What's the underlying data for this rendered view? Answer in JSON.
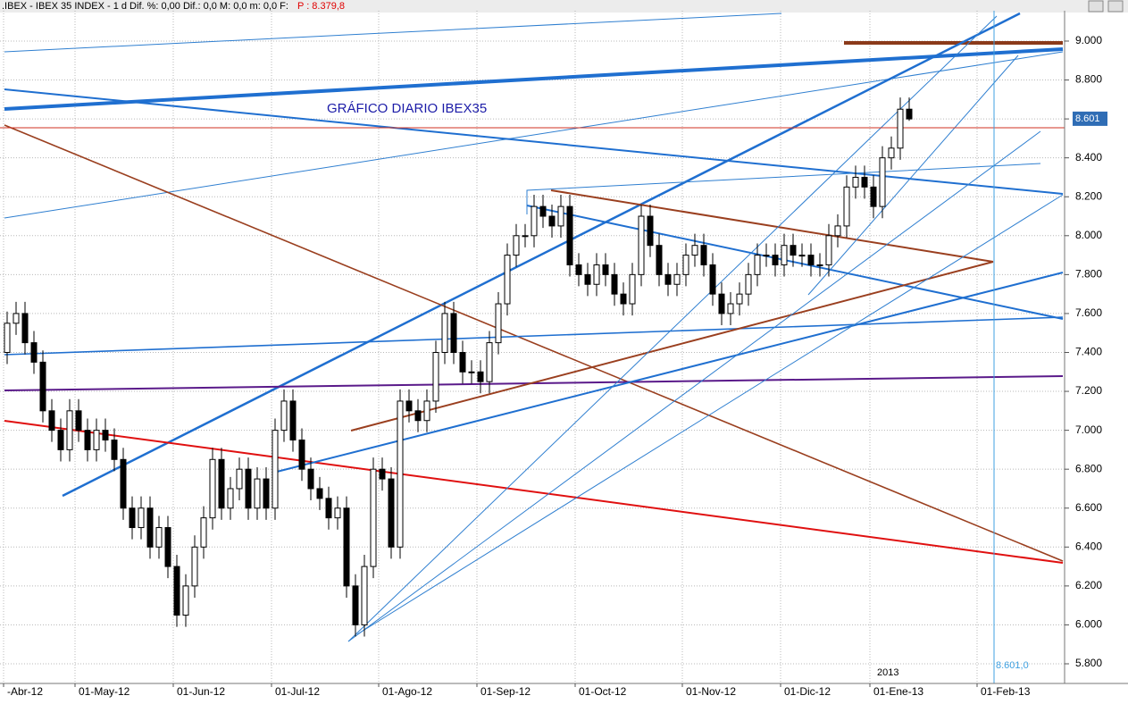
{
  "chart_data": {
    "type": "candlestick",
    "header": ".IBEX - IBEX 35 INDEX - 1 d Dif. %: 0,00 Dif.: 0,0 M: 0,0 m: 0,0 F:",
    "header_price": "P : 8.379,8",
    "title": "GRÁFICO DIARIO IBEX35",
    "year_label": "2013",
    "cursor_label": "8.601,0",
    "last_price": {
      "value": 8601,
      "label": "8.601"
    },
    "categories": [
      "-Abr-12",
      null,
      null,
      null,
      null,
      null,
      null,
      null,
      "01-May-12",
      null,
      null,
      null,
      null,
      null,
      null,
      null,
      null,
      null,
      null,
      "01-Jun-12",
      null,
      null,
      null,
      null,
      null,
      null,
      null,
      null,
      null,
      null,
      "01-Jul-12",
      null,
      null,
      null,
      null,
      null,
      null,
      null,
      null,
      null,
      null,
      null,
      "01-Ago-12",
      null,
      null,
      null,
      null,
      null,
      null,
      null,
      null,
      null,
      null,
      "01-Sep-12",
      null,
      null,
      null,
      null,
      null,
      null,
      null,
      null,
      null,
      null,
      "01-Oct-12",
      null,
      null,
      null,
      null,
      null,
      null,
      null,
      null,
      null,
      null,
      null,
      "01-Nov-12",
      null,
      null,
      null,
      null,
      null,
      null,
      null,
      null,
      null,
      null,
      "01-Dic-12",
      null,
      null,
      null,
      null,
      null,
      null,
      null,
      null,
      null,
      "01-Ene-13",
      null,
      null,
      null,
      null,
      null,
      null,
      null,
      null,
      null,
      null,
      null,
      "01-Feb-13",
      null,
      null,
      null,
      null,
      null,
      null,
      null,
      null,
      null
    ],
    "open": [
      7400,
      7550,
      7600,
      7450,
      7350,
      7100,
      7000,
      6900,
      7100,
      7000,
      6900,
      7000,
      6950,
      6850,
      6600,
      6500,
      6600,
      6400,
      6500,
      6300,
      6050,
      6200,
      6400,
      6550,
      6850,
      6600,
      6700,
      6800,
      6600,
      6750,
      6600,
      7000,
      7150,
      6950,
      6800,
      6700,
      6650,
      6550,
      6600,
      6200,
      6000,
      6300,
      6800,
      6750,
      6400,
      7150,
      7100,
      7050,
      7150,
      7400,
      7600,
      7400,
      7300,
      7300,
      7250,
      7450,
      7650,
      7900,
      8000,
      8000,
      8150,
      8100,
      8050,
      8150,
      7850,
      7800,
      7750,
      7850,
      7800,
      7700,
      7650,
      7800,
      8100,
      7950,
      7800,
      7750,
      7800,
      7900,
      7950,
      7850,
      7700,
      7600,
      7650,
      7700,
      7800,
      7900,
      7900,
      7850,
      7950,
      7900,
      7900,
      7850,
      7850,
      8000,
      8050,
      8250,
      8300,
      8250,
      8150,
      8400,
      8450,
      8650,
      null,
      null,
      null,
      null,
      null,
      null,
      null,
      null,
      null,
      null,
      null,
      null,
      null,
      null,
      null,
      null,
      null
    ],
    "high": [
      7610,
      7660,
      7660,
      7510,
      7410,
      7160,
      7060,
      7160,
      7160,
      7060,
      7060,
      7060,
      7010,
      6910,
      6660,
      6660,
      6660,
      6560,
      6560,
      6360,
      6260,
      6460,
      6610,
      6910,
      6910,
      6760,
      6860,
      6860,
      6810,
      6810,
      7060,
      7210,
      7210,
      7010,
      6860,
      6760,
      6710,
      6660,
      6660,
      6260,
      6360,
      6860,
      6860,
      6810,
      7210,
      7210,
      7160,
      7210,
      7460,
      7660,
      7660,
      7460,
      7360,
      7360,
      7510,
      7710,
      7960,
      8060,
      8060,
      8210,
      8210,
      8160,
      8210,
      8210,
      7910,
      7860,
      7910,
      7910,
      7860,
      7760,
      7860,
      8160,
      8160,
      8010,
      7860,
      7860,
      7960,
      8010,
      8010,
      7910,
      7760,
      7710,
      7760,
      7860,
      7960,
      7960,
      7960,
      8010,
      8010,
      7960,
      7960,
      7910,
      8060,
      8110,
      8310,
      8360,
      8360,
      8310,
      8460,
      8510,
      8710,
      8710,
      null,
      null,
      null,
      null,
      null,
      null,
      null,
      null,
      null,
      null,
      null,
      null,
      null,
      null,
      null,
      null,
      null
    ],
    "low": [
      7340,
      7490,
      7390,
      7290,
      7040,
      6940,
      6840,
      6840,
      6940,
      6840,
      6840,
      6890,
      6790,
      6540,
      6440,
      6440,
      6340,
      6340,
      6240,
      5990,
      5990,
      6140,
      6340,
      6490,
      6540,
      6540,
      6640,
      6540,
      6540,
      6540,
      6540,
      6940,
      6890,
      6740,
      6640,
      6590,
      6490,
      6490,
      6140,
      5940,
      5940,
      6240,
      6690,
      6340,
      6340,
      7040,
      6990,
      6990,
      7090,
      7340,
      7340,
      7240,
      7240,
      7190,
      7190,
      7390,
      7590,
      7840,
      7940,
      7940,
      8040,
      7990,
      7990,
      7790,
      7740,
      7690,
      7690,
      7740,
      7640,
      7590,
      7590,
      7740,
      7890,
      7740,
      7690,
      7690,
      7740,
      7840,
      7790,
      7640,
      7540,
      7540,
      7590,
      7640,
      7740,
      7840,
      7790,
      7790,
      7840,
      7840,
      7790,
      7790,
      7790,
      7940,
      7990,
      8190,
      8190,
      8090,
      8090,
      8340,
      8390,
      8590,
      null,
      null,
      null,
      null,
      null,
      null,
      null,
      null,
      null,
      null,
      null,
      null,
      null,
      null,
      null,
      null,
      null
    ],
    "close": [
      7550,
      7600,
      7450,
      7350,
      7100,
      7000,
      6900,
      7100,
      7000,
      6900,
      7000,
      6950,
      6850,
      6600,
      6500,
      6600,
      6400,
      6500,
      6300,
      6050,
      6200,
      6400,
      6550,
      6850,
      6600,
      6700,
      6800,
      6600,
      6750,
      6600,
      7000,
      7150,
      6950,
      6800,
      6700,
      6650,
      6550,
      6600,
      6200,
      6000,
      6300,
      6800,
      6750,
      6400,
      7150,
      7100,
      7050,
      7150,
      7400,
      7600,
      7400,
      7300,
      7300,
      7250,
      7450,
      7650,
      7900,
      8000,
      8000,
      8150,
      8100,
      8050,
      8150,
      7850,
      7800,
      7750,
      7850,
      7800,
      7700,
      7650,
      7800,
      8100,
      7950,
      7800,
      7750,
      7800,
      7900,
      7950,
      7850,
      7700,
      7600,
      7650,
      7700,
      7800,
      7900,
      7900,
      7850,
      7950,
      7900,
      7900,
      7850,
      7850,
      8000,
      8050,
      8250,
      8300,
      8250,
      8150,
      8400,
      8450,
      8650,
      8600,
      null,
      null,
      null,
      null,
      null,
      null,
      null,
      null,
      null,
      null,
      null,
      null,
      null,
      null,
      null,
      null,
      null
    ],
    "ylim": [
      5699,
      9156
    ],
    "yticks": [
      {
        "value": 5800,
        "label": "5.800"
      },
      {
        "value": 6000,
        "label": "6.000"
      },
      {
        "value": 6200,
        "label": "6.200"
      },
      {
        "value": 6400,
        "label": "6.400"
      },
      {
        "value": 6600,
        "label": "6.600"
      },
      {
        "value": 6800,
        "label": "6.800"
      },
      {
        "value": 7000,
        "label": "7.000"
      },
      {
        "value": 7200,
        "label": "7.200"
      },
      {
        "value": 7400,
        "label": "7.400"
      },
      {
        "value": 7600,
        "label": "7.600"
      },
      {
        "value": 7800,
        "label": "7.800"
      },
      {
        "value": 8000,
        "label": "8.000"
      },
      {
        "value": 8200,
        "label": "8.200"
      },
      {
        "value": 8400,
        "label": "8.400"
      },
      {
        "value": 8600,
        "label": "8.600"
      },
      {
        "value": 8800,
        "label": "8.800"
      },
      {
        "value": 9000,
        "label": "9.000"
      }
    ],
    "grid": true,
    "up_color": "#ffffff",
    "down_color": "#000000"
  }
}
